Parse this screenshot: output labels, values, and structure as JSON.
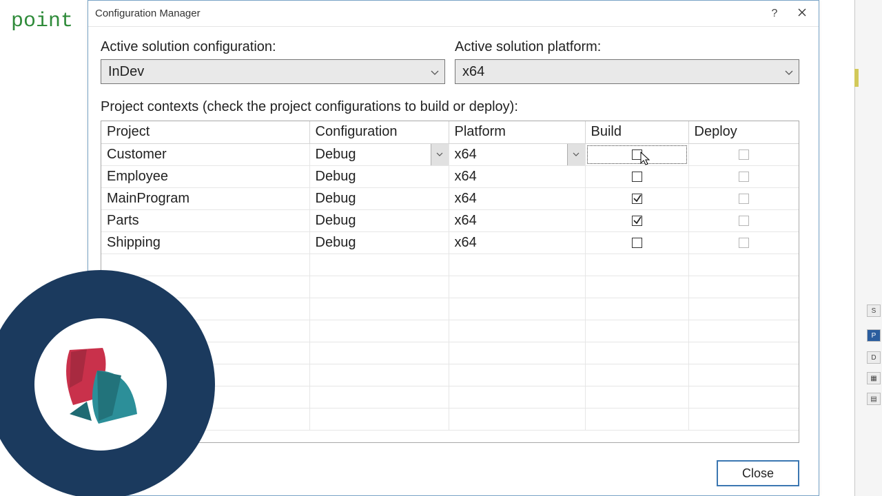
{
  "background": {
    "code_word": "point"
  },
  "dialog": {
    "title": "Configuration Manager",
    "help_tooltip": "?",
    "close_tooltip": "Close",
    "solutionConfig": {
      "label": "Active solution configuration:",
      "value": "InDev"
    },
    "solutionPlatform": {
      "label": "Active solution platform:",
      "value": "x64"
    },
    "contextsLabel": "Project contexts (check the project configurations to build or deploy):",
    "columns": {
      "project": "Project",
      "configuration": "Configuration",
      "platform": "Platform",
      "build": "Build",
      "deploy": "Deploy"
    },
    "rows": [
      {
        "project": "Customer",
        "configuration": "Debug",
        "platform": "x64",
        "build": false,
        "deploy": false,
        "active": true
      },
      {
        "project": "Employee",
        "configuration": "Debug",
        "platform": "x64",
        "build": false,
        "deploy": false,
        "active": false
      },
      {
        "project": "MainProgram",
        "configuration": "Debug",
        "platform": "x64",
        "build": true,
        "deploy": false,
        "active": false
      },
      {
        "project": "Parts",
        "configuration": "Debug",
        "platform": "x64",
        "build": true,
        "deploy": false,
        "active": false
      },
      {
        "project": "Shipping",
        "configuration": "Debug",
        "platform": "x64",
        "build": false,
        "deploy": false,
        "active": false
      }
    ],
    "emptyRows": 8,
    "closeButton": "Close"
  },
  "colors": {
    "dialogBorder": "#77a3c6",
    "accent": "#3a76b1",
    "badgeRing": "#1b3a5e",
    "badgeRed": "#c9314b",
    "badgeTeal": "#2c8f99"
  }
}
